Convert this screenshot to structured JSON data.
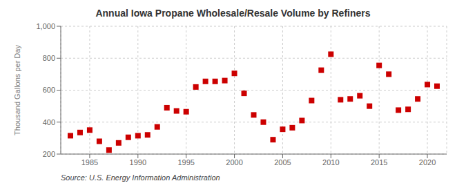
{
  "chart_data": {
    "type": "scatter",
    "title": "Annual Iowa Propane Wholesale/Resale Volume by Refiners",
    "ylabel": "Thousand Gallons per Day",
    "annotation": "Source: U.S. Energy Information Administration",
    "x": [
      1983,
      1984,
      1985,
      1986,
      1987,
      1988,
      1989,
      1990,
      1991,
      1992,
      1993,
      1994,
      1995,
      1996,
      1997,
      1998,
      1999,
      2000,
      2001,
      2002,
      2003,
      2004,
      2005,
      2006,
      2007,
      2008,
      2009,
      2010,
      2011,
      2012,
      2013,
      2014,
      2015,
      2016,
      2017,
      2018,
      2019,
      2020,
      2021
    ],
    "values": [
      315,
      335,
      350,
      280,
      225,
      270,
      305,
      315,
      320,
      370,
      490,
      470,
      465,
      620,
      655,
      655,
      660,
      705,
      580,
      445,
      400,
      290,
      355,
      365,
      410,
      535,
      725,
      825,
      540,
      545,
      565,
      500,
      755,
      700,
      475,
      480,
      545,
      635,
      625
    ],
    "color": "#cc0000",
    "marker": "square",
    "xlim": [
      1982,
      2022
    ],
    "ylim": [
      200,
      1000
    ],
    "xticks": [
      1985,
      1990,
      1995,
      2000,
      2005,
      2010,
      2015,
      2020
    ],
    "yticks": [
      200,
      400,
      600,
      800,
      {
        "value": 1000,
        "label": "1,000"
      }
    ],
    "grid": true
  }
}
